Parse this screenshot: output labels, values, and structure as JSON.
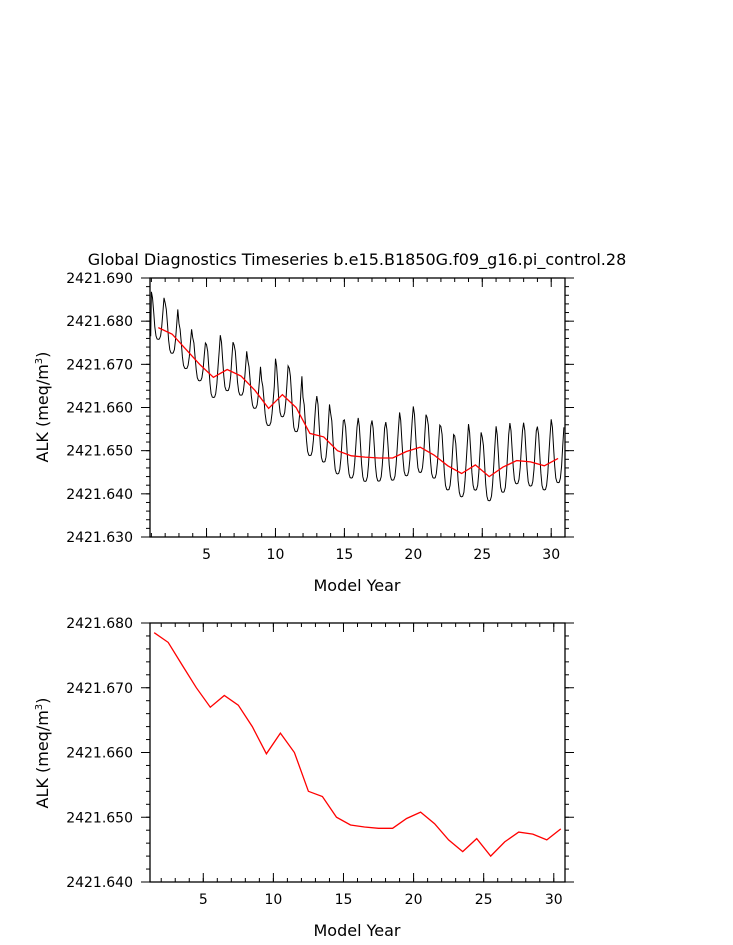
{
  "chart_data": [
    {
      "type": "line",
      "title": "Global Diagnostics Timeseries b.e15.B1850G.f09_g16.pi_control.28",
      "xlabel": "Model Year",
      "ylabel": "ALK (meq/m",
      "ylabel_sup": "3",
      "ylabel_end": ")",
      "xlim": [
        0.9,
        31.0
      ],
      "ylim": [
        2421.63,
        2421.69
      ],
      "xticks": [
        5,
        10,
        15,
        20,
        25,
        30
      ],
      "xtick_labels": [
        "5",
        "10",
        "15",
        "20",
        "25",
        "30"
      ],
      "yticks": [
        2421.63,
        2421.64,
        2421.65,
        2421.66,
        2421.67,
        2421.68,
        2421.69
      ],
      "ytick_labels": [
        "2421.630",
        "2421.640",
        "2421.650",
        "2421.660",
        "2421.670",
        "2421.680",
        "2421.690"
      ],
      "grid": false,
      "series": [
        {
          "kind": "monthly",
          "color": "#000000",
          "base": [
            [
              1.5,
              2421.68
            ],
            [
              2.5,
              2421.677
            ],
            [
              3.5,
              2421.673
            ],
            [
              4.5,
              2421.67
            ],
            [
              5.5,
              2421.667
            ],
            [
              6.5,
              2421.6688
            ],
            [
              7.5,
              2421.6673
            ],
            [
              8.5,
              2421.664
            ],
            [
              9.5,
              2421.6598
            ],
            [
              10.5,
              2421.663
            ],
            [
              11.5,
              2421.66
            ],
            [
              12.5,
              2421.654
            ],
            [
              13.5,
              2421.6532
            ],
            [
              14.5,
              2421.65
            ],
            [
              15.5,
              2421.6488
            ],
            [
              16.5,
              2421.6485
            ],
            [
              17.5,
              2421.6483
            ],
            [
              18.5,
              2421.6483
            ],
            [
              19.5,
              2421.6498
            ],
            [
              20.5,
              2421.6508
            ],
            [
              21.5,
              2421.649
            ],
            [
              22.5,
              2421.6465
            ],
            [
              23.5,
              2421.6447
            ],
            [
              24.5,
              2421.6467
            ],
            [
              25.5,
              2421.644
            ],
            [
              26.5,
              2421.6462
            ],
            [
              27.5,
              2421.6477
            ],
            [
              28.5,
              2421.6474
            ],
            [
              29.5,
              2421.6465
            ],
            [
              30.5,
              2421.6482
            ]
          ],
          "amplitude": [
            0.009,
            0.0095,
            0.0085,
            0.0082,
            0.01,
            0.0105,
            0.0095,
            0.009,
            0.0085,
            0.011,
            0.012,
            0.011,
            0.0125,
            0.0115,
            0.011,
            0.012,
            0.0115,
            0.011,
            0.012,
            0.0125,
            0.0115,
            0.012,
            0.0115,
            0.0125,
            0.012,
            0.0125,
            0.0115,
            0.012,
            0.012,
            0.012
          ]
        },
        {
          "kind": "annual",
          "color": "#ff0000",
          "points": [
            [
              1.5,
              2421.6785
            ],
            [
              2.5,
              2421.677
            ],
            [
              3.5,
              2421.6735
            ],
            [
              4.5,
              2421.67
            ],
            [
              5.5,
              2421.667
            ],
            [
              6.5,
              2421.6688
            ],
            [
              7.5,
              2421.6673
            ],
            [
              8.5,
              2421.664
            ],
            [
              9.5,
              2421.6598
            ],
            [
              10.5,
              2421.663
            ],
            [
              11.5,
              2421.66
            ],
            [
              12.5,
              2421.654
            ],
            [
              13.5,
              2421.6532
            ],
            [
              14.5,
              2421.65
            ],
            [
              15.5,
              2421.6488
            ],
            [
              16.5,
              2421.6485
            ],
            [
              17.5,
              2421.6483
            ],
            [
              18.5,
              2421.6483
            ],
            [
              19.5,
              2421.6498
            ],
            [
              20.5,
              2421.6508
            ],
            [
              21.5,
              2421.649
            ],
            [
              22.5,
              2421.6465
            ],
            [
              23.5,
              2421.6447
            ],
            [
              24.5,
              2421.6467
            ],
            [
              25.5,
              2421.644
            ],
            [
              26.5,
              2421.6462
            ],
            [
              27.5,
              2421.6477
            ],
            [
              28.5,
              2421.6474
            ],
            [
              29.5,
              2421.6465
            ],
            [
              30.5,
              2421.6482
            ]
          ]
        }
      ]
    },
    {
      "type": "line",
      "title": "",
      "xlabel": "Model Year",
      "ylabel": "ALK (meq/m",
      "ylabel_sup": "3",
      "ylabel_end": ")",
      "xlim": [
        1.2,
        30.8
      ],
      "ylim": [
        2421.64,
        2421.68
      ],
      "xticks": [
        5,
        10,
        15,
        20,
        25,
        30
      ],
      "xtick_labels": [
        "5",
        "10",
        "15",
        "20",
        "25",
        "30"
      ],
      "yticks": [
        2421.64,
        2421.65,
        2421.66,
        2421.67,
        2421.68
      ],
      "ytick_labels": [
        "2421.640",
        "2421.650",
        "2421.660",
        "2421.670",
        "2421.680"
      ],
      "grid": false,
      "series": [
        {
          "kind": "annual",
          "color": "#ff0000",
          "points": [
            [
              1.5,
              2421.6785
            ],
            [
              2.5,
              2421.677
            ],
            [
              3.5,
              2421.6735
            ],
            [
              4.5,
              2421.67
            ],
            [
              5.5,
              2421.667
            ],
            [
              6.5,
              2421.6688
            ],
            [
              7.5,
              2421.6673
            ],
            [
              8.5,
              2421.664
            ],
            [
              9.5,
              2421.6598
            ],
            [
              10.5,
              2421.663
            ],
            [
              11.5,
              2421.66
            ],
            [
              12.5,
              2421.654
            ],
            [
              13.5,
              2421.6532
            ],
            [
              14.5,
              2421.65
            ],
            [
              15.5,
              2421.6488
            ],
            [
              16.5,
              2421.6485
            ],
            [
              17.5,
              2421.6483
            ],
            [
              18.5,
              2421.6483
            ],
            [
              19.5,
              2421.6498
            ],
            [
              20.5,
              2421.6508
            ],
            [
              21.5,
              2421.649
            ],
            [
              22.5,
              2421.6465
            ],
            [
              23.5,
              2421.6447
            ],
            [
              24.5,
              2421.6467
            ],
            [
              25.5,
              2421.644
            ],
            [
              26.5,
              2421.6462
            ],
            [
              27.5,
              2421.6477
            ],
            [
              28.5,
              2421.6474
            ],
            [
              29.5,
              2421.6465
            ],
            [
              30.5,
              2421.6482
            ]
          ]
        }
      ]
    }
  ]
}
